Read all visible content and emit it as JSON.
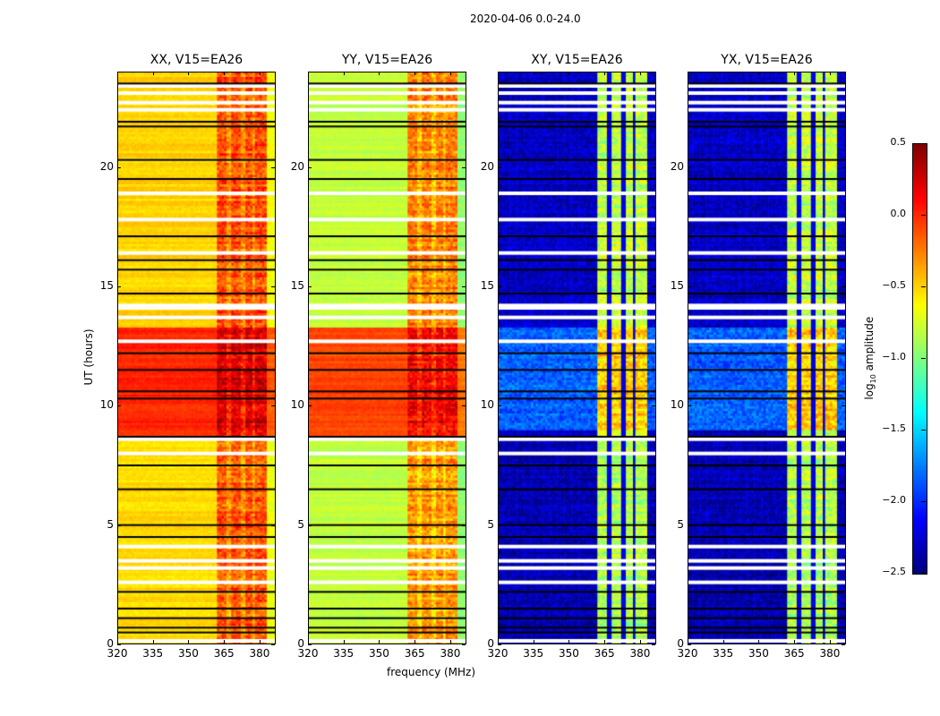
{
  "chart_data": {
    "type": "heatmap",
    "title": "2020-04-06 0.0-24.0",
    "xlabel": "frequency (MHz)",
    "ylabel": "UT (hours)",
    "xlim": [
      320,
      386.8
    ],
    "ylim": [
      0,
      24
    ],
    "xticks": [
      "320",
      "335",
      "350",
      "365",
      "380"
    ],
    "xtick_values": [
      320,
      335,
      350,
      365,
      380
    ],
    "yticks": [
      "0",
      "5",
      "10",
      "15",
      "20"
    ],
    "ytick_values": [
      0,
      5,
      10,
      15,
      20
    ],
    "colorbar": {
      "label_prefix": "log",
      "label_sub": "10",
      "label_suffix": " amplitude",
      "range": [
        -2.5,
        0.5
      ],
      "ticks": [
        "0.5",
        "0.0",
        "−0.5",
        "−1.0",
        "−1.5",
        "−2.0",
        "−2.5"
      ],
      "tick_values": [
        0.5,
        0.0,
        -0.5,
        -1.0,
        -1.5,
        -2.0,
        -2.5
      ],
      "colormap": "jet"
    },
    "band": {
      "start_mhz": 362.3,
      "end_mhz": 382.6,
      "gap_mhz": [
        366.8,
        372.8,
        377.7
      ]
    },
    "flagged_hours_white": [
      0.15,
      2.6,
      3.2,
      3.5,
      4.1,
      8.0,
      8.6,
      12.7,
      13.7,
      14.1,
      14.2,
      16.4,
      17.8,
      18.9,
      22.4,
      22.7,
      23.1,
      23.4
    ],
    "flagged_hours_black": [
      0.5,
      0.7,
      1.1,
      1.5,
      2.2,
      4.5,
      5.0,
      6.5,
      7.5,
      8.7,
      10.3,
      10.6,
      11.5,
      12.2,
      14.7,
      15.7,
      16.1,
      17.1,
      19.5,
      20.3,
      21.7,
      21.9,
      23.5
    ],
    "panels": [
      {
        "title": "XX, V15=EA26",
        "segments": [
          {
            "from": 0,
            "to": 8.6,
            "base": -0.52,
            "band": -0.12
          },
          {
            "from": 8.6,
            "to": 13.3,
            "base": 0.02,
            "band": 0.25
          },
          {
            "from": 13.3,
            "to": 24,
            "base": -0.5,
            "band": -0.1
          }
        ]
      },
      {
        "title": "YY, V15=EA26",
        "segments": [
          {
            "from": 0,
            "to": 8.6,
            "base": -0.8,
            "band": -0.3
          },
          {
            "from": 8.6,
            "to": 13.3,
            "base": -0.08,
            "band": 0.15
          },
          {
            "from": 13.3,
            "to": 24,
            "base": -0.8,
            "band": -0.25
          }
        ]
      },
      {
        "title": "XY, V15=EA26",
        "segments": [
          {
            "from": 0,
            "to": 9.0,
            "base": -2.35,
            "band": -0.85
          },
          {
            "from": 9.0,
            "to": 13.3,
            "base": -1.85,
            "band": -0.5
          },
          {
            "from": 13.3,
            "to": 24,
            "base": -2.3,
            "band": -0.8
          }
        ]
      },
      {
        "title": "YX, V15=EA26",
        "segments": [
          {
            "from": 0,
            "to": 9.0,
            "base": -2.35,
            "band": -0.85
          },
          {
            "from": 9.0,
            "to": 13.3,
            "base": -1.85,
            "band": -0.5
          },
          {
            "from": 13.3,
            "to": 24,
            "base": -2.3,
            "band": -0.8
          }
        ]
      }
    ]
  }
}
